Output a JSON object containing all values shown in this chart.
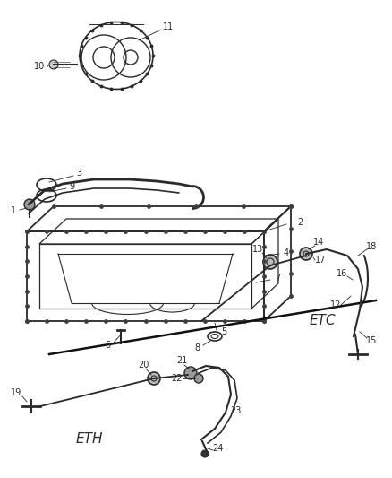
{
  "bg_color": "#ffffff",
  "line_color": "#2a2a2a",
  "label_color": "#2a2a2a",
  "lw": 1.0,
  "label_fs": 7.0,
  "etc_fs": 11.0,
  "eth_fs": 11.0
}
